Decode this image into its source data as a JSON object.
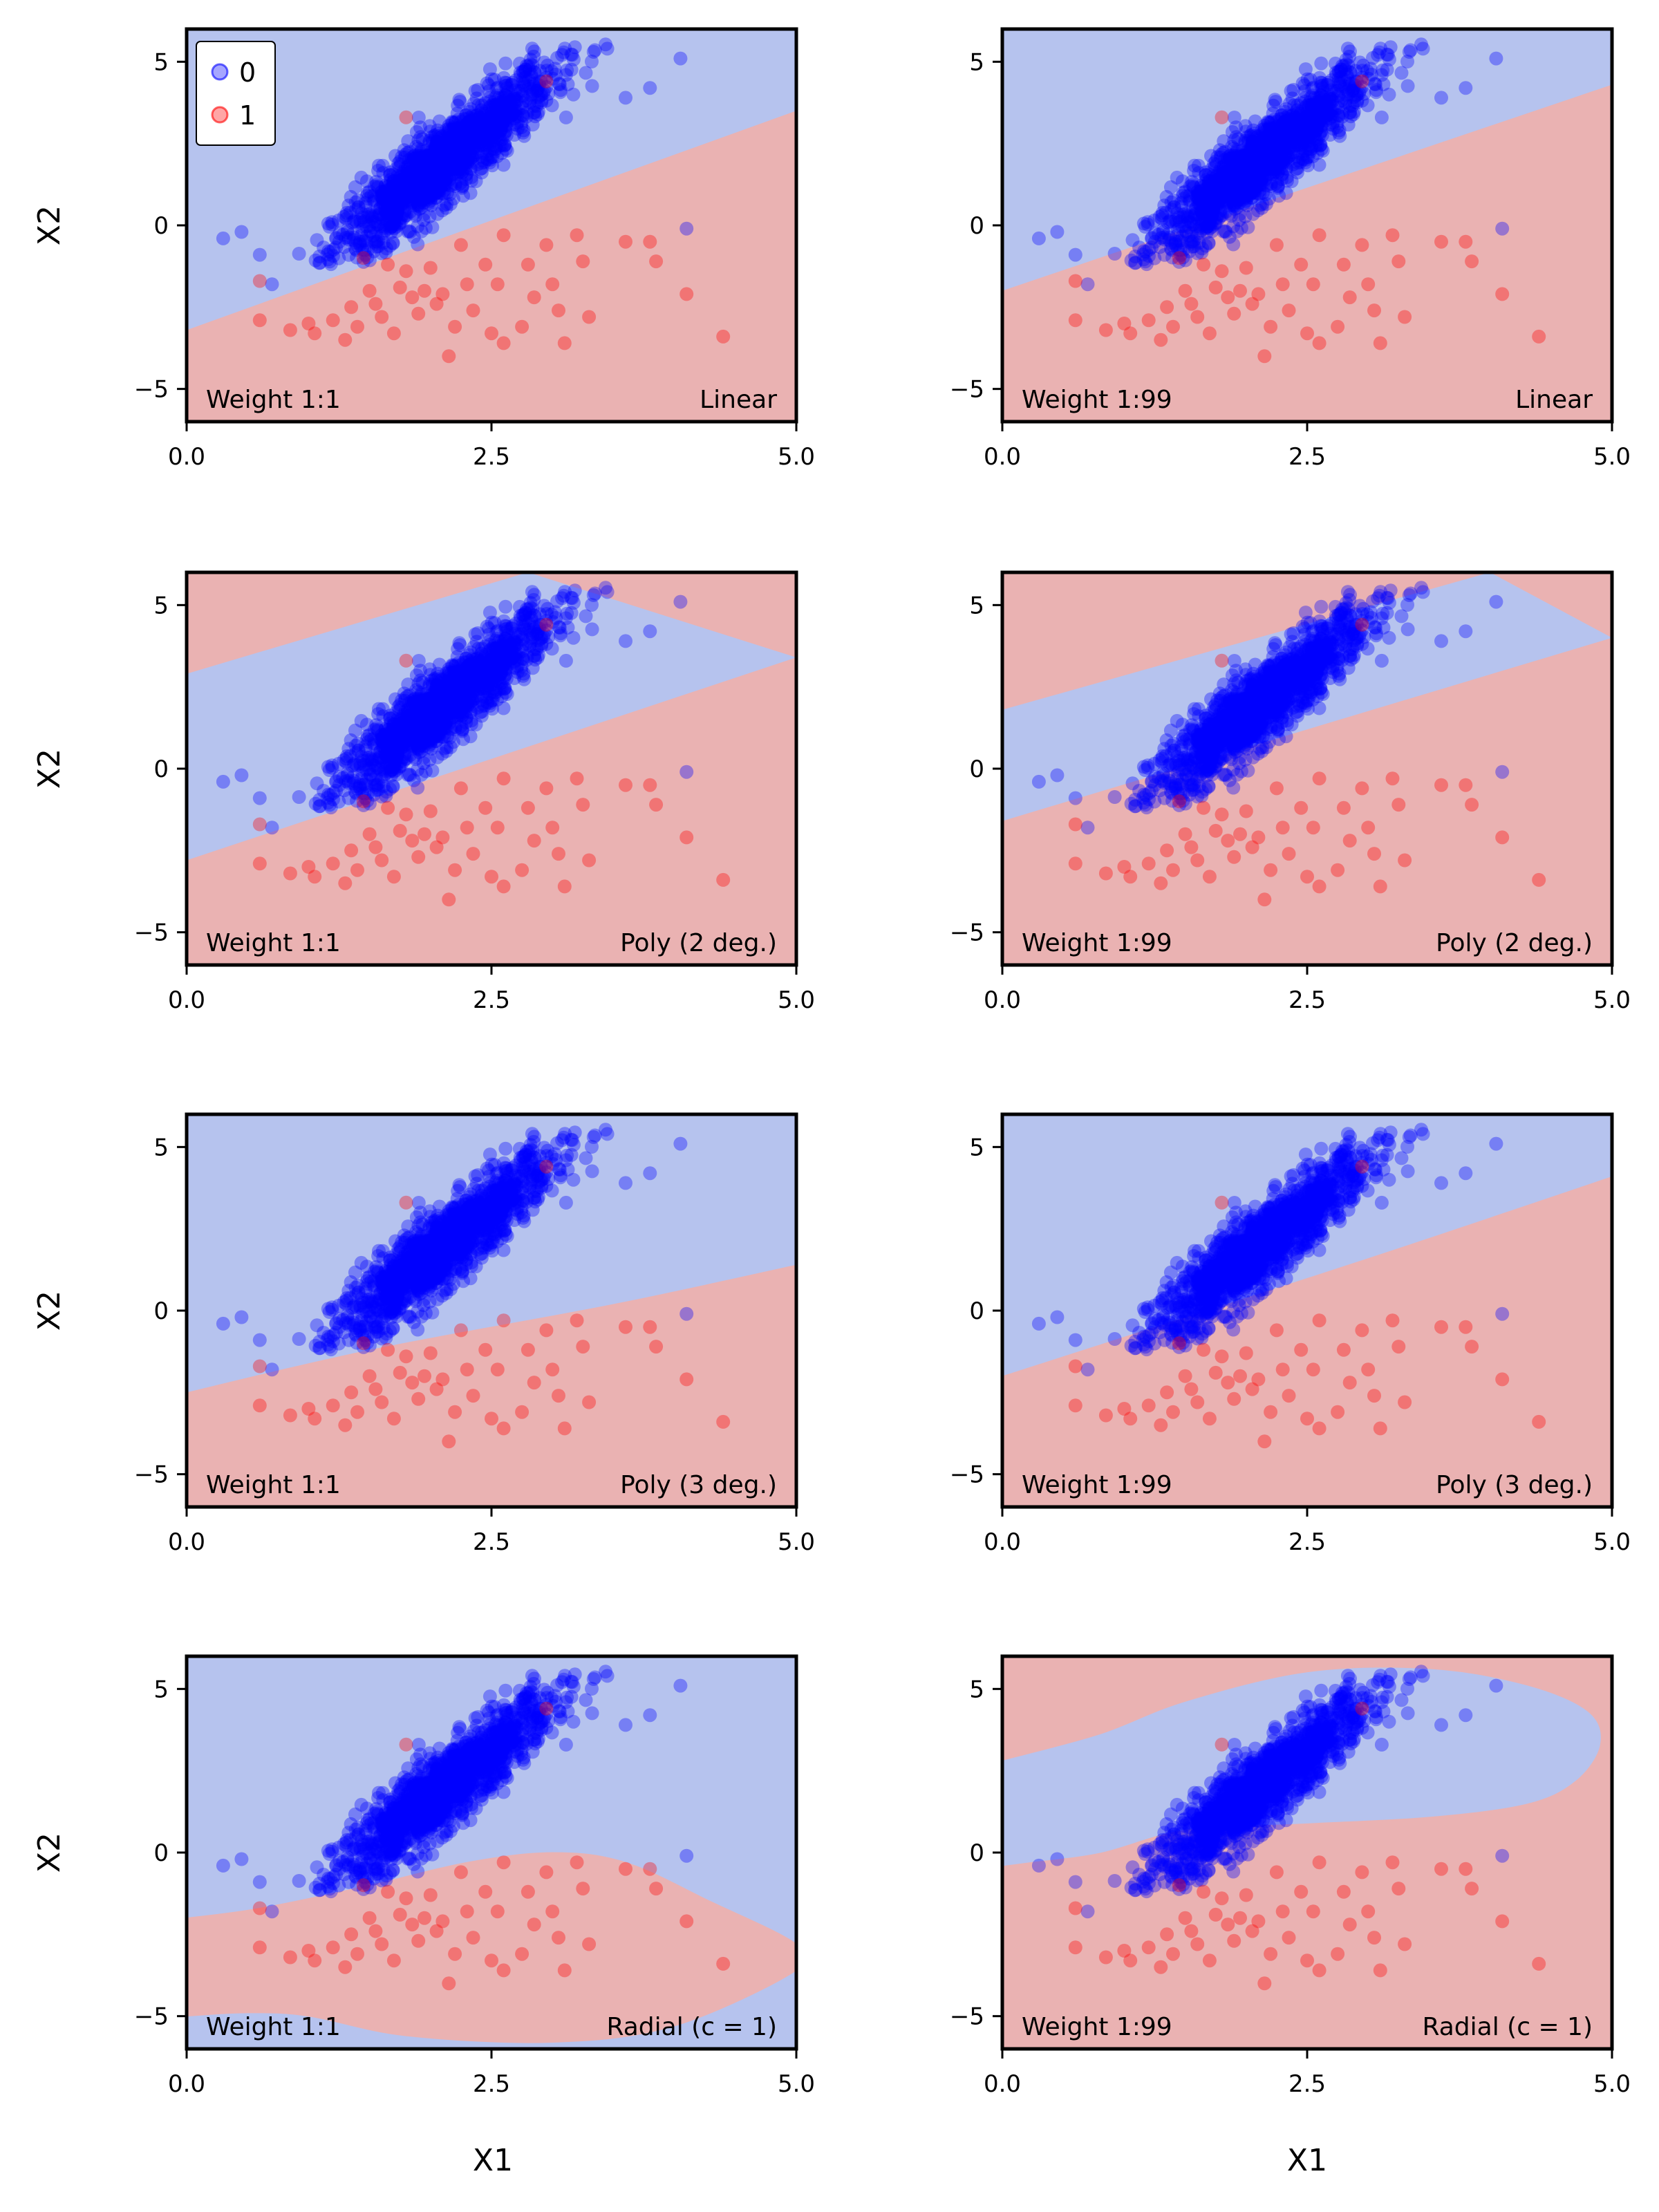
{
  "colors": {
    "class0_region": "#b6c3ee",
    "class1_region": "#eab2b2",
    "class0_points": "#0000ff",
    "class1_points": "#ff0000"
  },
  "shared": {
    "xlabel": "X1",
    "ylabel": "X2",
    "xlim": [
      0,
      5
    ],
    "ylim": [
      -6,
      6
    ],
    "xticks": [
      "0.0",
      "2.5",
      "5.0"
    ],
    "yticks": [
      "−5",
      "0",
      "5"
    ],
    "legend": {
      "placement": "top-left (first panel)",
      "entries": [
        "0",
        "1"
      ]
    }
  },
  "chart_data": [
    {
      "type": "scatter",
      "weight_label": "Weight 1:1",
      "kernel_label": "Linear",
      "row": 0,
      "col": 0,
      "show_legend": true,
      "boundary": {
        "kind": "linear",
        "upper": [
          [
            0,
            -3.2
          ],
          [
            5,
            3.5
          ]
        ]
      }
    },
    {
      "type": "scatter",
      "weight_label": "Weight 1:99",
      "kernel_label": "Linear",
      "row": 0,
      "col": 1,
      "boundary": {
        "kind": "linear",
        "upper": [
          [
            0,
            -2.0
          ],
          [
            5,
            4.3
          ]
        ]
      }
    },
    {
      "type": "scatter",
      "weight_label": "Weight 1:1",
      "kernel_label": "Poly (2 deg.)",
      "row": 1,
      "col": 0,
      "boundary": {
        "kind": "band",
        "upper": [
          [
            0,
            2.9
          ],
          [
            2.8,
            6.0
          ]
        ],
        "lower": [
          [
            0,
            -2.8
          ],
          [
            5,
            3.4
          ]
        ]
      }
    },
    {
      "type": "scatter",
      "weight_label": "Weight 1:99",
      "kernel_label": "Poly (2 deg.)",
      "row": 1,
      "col": 1,
      "boundary": {
        "kind": "band",
        "upper": [
          [
            0,
            1.8
          ],
          [
            4.0,
            6.0
          ]
        ],
        "lower": [
          [
            0,
            -1.6
          ],
          [
            5,
            4.0
          ]
        ]
      }
    },
    {
      "type": "scatter",
      "weight_label": "Weight 1:1",
      "kernel_label": "Poly (3 deg.)",
      "row": 2,
      "col": 0,
      "boundary": {
        "kind": "curve",
        "upper": [
          [
            0,
            -2.5
          ],
          [
            1.5,
            -1.2
          ],
          [
            3.5,
            0.2
          ],
          [
            5,
            1.4
          ]
        ]
      }
    },
    {
      "type": "scatter",
      "weight_label": "Weight 1:99",
      "kernel_label": "Poly (3 deg.)",
      "row": 2,
      "col": 1,
      "boundary": {
        "kind": "curve",
        "upper": [
          [
            0,
            -2.0
          ],
          [
            1.0,
            -0.8
          ],
          [
            3.0,
            1.6
          ],
          [
            5,
            4.1
          ]
        ]
      }
    },
    {
      "type": "scatter",
      "weight_label": "Weight 1:1",
      "kernel_label": "Radial (c = 1)",
      "row": 3,
      "col": 0,
      "boundary": {
        "kind": "closed",
        "outline": [
          [
            0,
            -2.0
          ],
          [
            0.6,
            -1.7
          ],
          [
            1.5,
            -1.0
          ],
          [
            2.3,
            -0.3
          ],
          [
            3.0,
            0.0
          ],
          [
            3.6,
            -0.3
          ],
          [
            4.3,
            -1.5
          ],
          [
            5,
            -2.8
          ],
          [
            5,
            -3.6
          ],
          [
            4.0,
            -5.3
          ],
          [
            3.0,
            -5.8
          ],
          [
            1.8,
            -5.6
          ],
          [
            1.0,
            -5.0
          ],
          [
            0.5,
            -4.9
          ],
          [
            0,
            -5.0
          ]
        ]
      }
    },
    {
      "type": "scatter",
      "weight_label": "Weight 1:99",
      "kernel_label": "Radial (c = 1)",
      "row": 3,
      "col": 1,
      "boundary": {
        "kind": "closed",
        "outline": [
          [
            0,
            2.8
          ],
          [
            0.8,
            3.6
          ],
          [
            1.5,
            4.6
          ],
          [
            2.5,
            5.5
          ],
          [
            3.5,
            5.6
          ],
          [
            4.3,
            5.1
          ],
          [
            4.8,
            4.3
          ],
          [
            4.9,
            3.3
          ],
          [
            4.7,
            2.2
          ],
          [
            4.3,
            1.5
          ],
          [
            3.5,
            1.1
          ],
          [
            2.5,
            0.9
          ],
          [
            1.5,
            0.7
          ],
          [
            0.8,
            0.0
          ],
          [
            0.2,
            -0.3
          ],
          [
            0,
            -0.4
          ]
        ]
      }
    }
  ],
  "minority_points": [
    [
      0.6,
      -1.7
    ],
    [
      0.6,
      -2.9
    ],
    [
      0.85,
      -3.2
    ],
    [
      1.0,
      -3.0
    ],
    [
      1.05,
      -3.3
    ],
    [
      1.2,
      -2.9
    ],
    [
      1.3,
      -3.5
    ],
    [
      1.35,
      -2.5
    ],
    [
      1.4,
      -3.1
    ],
    [
      1.45,
      -1.0
    ],
    [
      1.5,
      -2.0
    ],
    [
      1.55,
      -2.4
    ],
    [
      1.6,
      -2.8
    ],
    [
      1.65,
      -1.2
    ],
    [
      1.7,
      -3.3
    ],
    [
      1.75,
      -1.9
    ],
    [
      1.8,
      -1.4
    ],
    [
      1.85,
      -2.2
    ],
    [
      1.9,
      -2.7
    ],
    [
      1.95,
      -2.0
    ],
    [
      2.0,
      -1.3
    ],
    [
      2.05,
      -2.4
    ],
    [
      2.1,
      -2.1
    ],
    [
      2.15,
      -4.0
    ],
    [
      2.2,
      -3.1
    ],
    [
      2.25,
      -0.6
    ],
    [
      2.3,
      -1.8
    ],
    [
      2.35,
      -2.6
    ],
    [
      2.45,
      -1.2
    ],
    [
      2.5,
      -3.3
    ],
    [
      2.55,
      -1.8
    ],
    [
      2.6,
      -3.6
    ],
    [
      2.6,
      -0.3
    ],
    [
      2.75,
      -3.1
    ],
    [
      2.8,
      -1.2
    ],
    [
      2.85,
      -2.2
    ],
    [
      2.95,
      -0.6
    ],
    [
      3.0,
      -1.8
    ],
    [
      3.05,
      -2.6
    ],
    [
      3.1,
      -3.6
    ],
    [
      3.2,
      -0.3
    ],
    [
      3.25,
      -1.1
    ],
    [
      3.3,
      -2.8
    ],
    [
      3.6,
      -0.5
    ],
    [
      3.8,
      -0.5
    ],
    [
      3.85,
      -1.1
    ],
    [
      4.1,
      -2.1
    ],
    [
      4.4,
      -3.4
    ],
    [
      1.8,
      3.3
    ],
    [
      2.95,
      4.4
    ]
  ],
  "majority_extras": [
    [
      0.3,
      -0.4
    ],
    [
      0.45,
      -0.2
    ],
    [
      0.6,
      -0.9
    ],
    [
      0.7,
      -1.8
    ],
    [
      4.05,
      5.1
    ],
    [
      4.1,
      -0.1
    ],
    [
      3.6,
      3.9
    ],
    [
      3.45,
      5.4
    ],
    [
      3.8,
      4.2
    ]
  ]
}
